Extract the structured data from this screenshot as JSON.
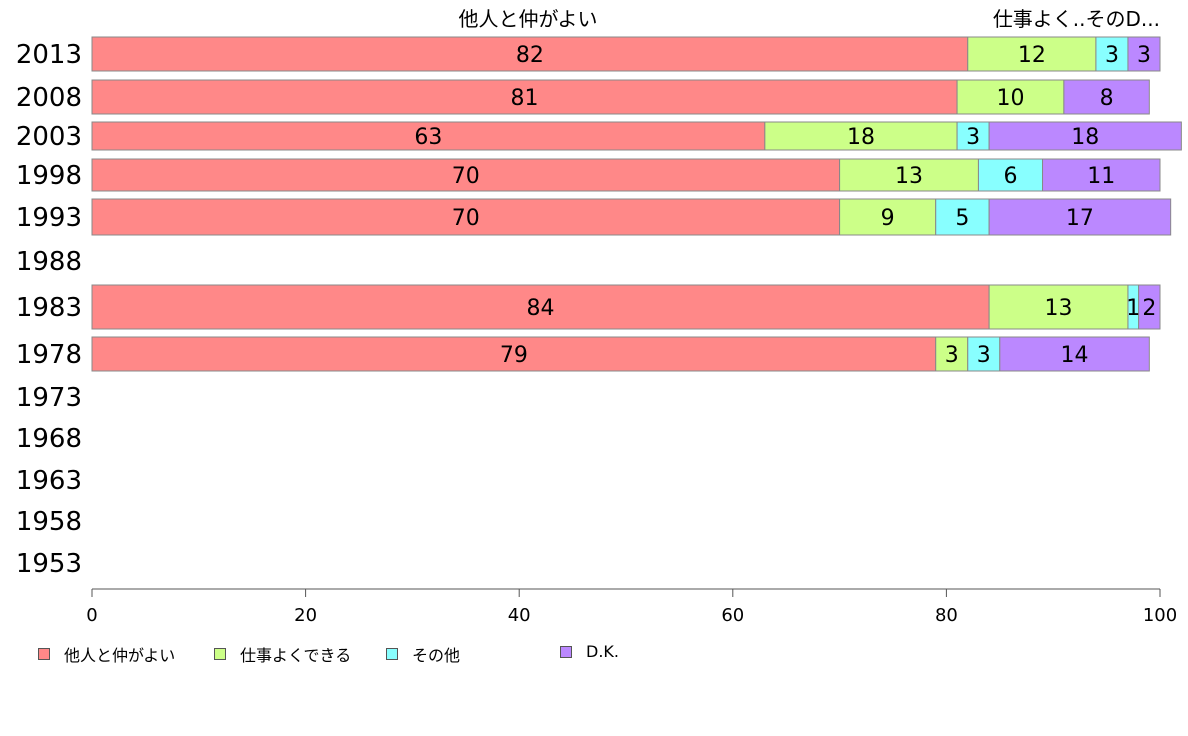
{
  "chart_data": {
    "type": "bar",
    "orientation": "horizontal",
    "stacked": true,
    "categories": [
      "2013",
      "2008",
      "2003",
      "1998",
      "1993",
      "1988",
      "1983",
      "1978",
      "1973",
      "1968",
      "1963",
      "1958",
      "1953"
    ],
    "series": [
      {
        "name": "他人と仲がよい",
        "color": "#ff8888",
        "values": [
          82,
          81,
          63,
          70,
          70,
          null,
          84,
          79,
          null,
          null,
          null,
          null,
          null
        ]
      },
      {
        "name": "仕事よくできる",
        "color": "#ccff88",
        "values": [
          12,
          10,
          18,
          13,
          9,
          null,
          13,
          3,
          null,
          null,
          null,
          null,
          null
        ]
      },
      {
        "name": "その他",
        "color": "#88ffff",
        "values": [
          3,
          0,
          3,
          6,
          5,
          null,
          1,
          3,
          null,
          null,
          null,
          null,
          null
        ]
      },
      {
        "name": "D.K.",
        "color": "#bb88ff",
        "values": [
          3,
          8,
          18,
          11,
          17,
          null,
          2,
          14,
          null,
          null,
          null,
          null,
          null
        ]
      }
    ],
    "top_labels": [
      "他人と仲がよい",
      "仕事よく..そのD..."
    ],
    "xlim": [
      0,
      100
    ],
    "xticks": [
      "0",
      "20",
      "40",
      "60",
      "80",
      "100"
    ],
    "legend_position": "bottom-left",
    "grid": false
  }
}
